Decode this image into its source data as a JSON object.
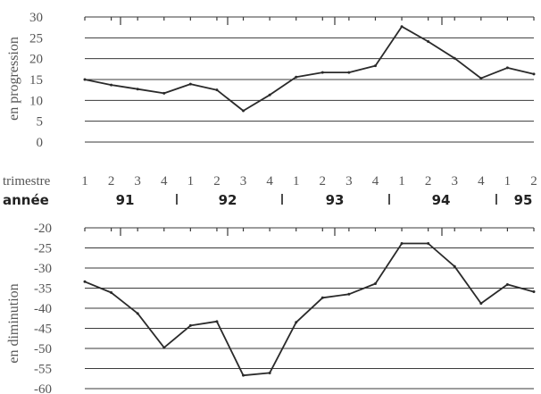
{
  "labels": {
    "trimestre": "trimestre",
    "annee": "année"
  },
  "axis_labels": {
    "top_ylabel": "en progression",
    "bottom_ylabel": "en diminution"
  },
  "quarter_labels": [
    "1",
    "2",
    "3",
    "4",
    "1",
    "2",
    "3",
    "4",
    "1",
    "2",
    "3",
    "4",
    "1",
    "2",
    "3",
    "4",
    "1",
    "2"
  ],
  "years": [
    "91",
    "92",
    "93",
    "94",
    "95"
  ],
  "chart_data": [
    {
      "type": "line",
      "ylabel": "en progression",
      "ylim": [
        0,
        30
      ],
      "yticks": [
        0,
        5,
        10,
        15,
        20,
        25,
        30
      ],
      "grid": true,
      "x": [
        "91 T1",
        "91 T2",
        "91 T3",
        "91 T4",
        "92 T1",
        "92 T2",
        "92 T3",
        "92 T4",
        "93 T1",
        "93 T2",
        "93 T3",
        "93 T4",
        "94 T1",
        "94 T2",
        "94 T3",
        "94 T4",
        "95 T1",
        "95 T2"
      ],
      "values": [
        15,
        13.7,
        12.7,
        11.7,
        13.9,
        12.5,
        7.5,
        11.3,
        15.6,
        16.7,
        16.7,
        18.3,
        27.7,
        24.1,
        20.1,
        15.3,
        17.8,
        16.3
      ]
    },
    {
      "type": "line",
      "ylabel": "en diminution",
      "ylim": [
        -60,
        -20
      ],
      "yticks": [
        -60,
        -55,
        -50,
        -45,
        -40,
        -35,
        -30,
        -25,
        -20
      ],
      "grid": true,
      "x": [
        "91 T1",
        "91 T2",
        "91 T3",
        "91 T4",
        "92 T1",
        "92 T2",
        "92 T3",
        "92 T4",
        "93 T1",
        "93 T2",
        "93 T3",
        "93 T4",
        "94 T1",
        "94 T2",
        "94 T3",
        "94 T4",
        "95 T1",
        "95 T2"
      ],
      "values": [
        -33.4,
        -36.1,
        -41.3,
        -49.8,
        -44.3,
        -43.3,
        -56.7,
        -56.1,
        -43.5,
        -37.4,
        -36.5,
        -33.9,
        -23.9,
        -23.9,
        -29.6,
        -38.8,
        -34.1,
        -35.9
      ]
    }
  ]
}
